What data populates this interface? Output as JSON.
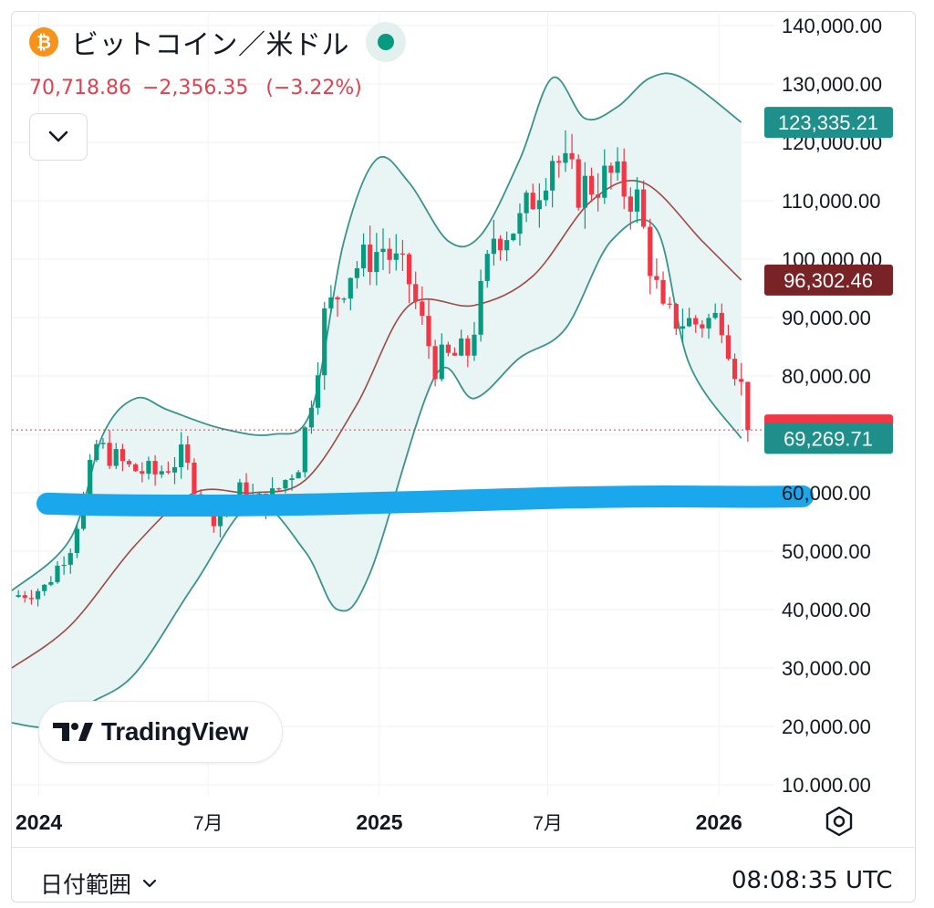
{
  "header": {
    "symbol_icon": "bitcoin-icon",
    "symbol_glyph": "₿",
    "title": "ビットコイン／米ドル",
    "status": "market-open-dot",
    "price": "70,718.86",
    "change": "−2,356.35",
    "change_pct": "(−3.22%)",
    "expand_icon": "chevron-down-icon"
  },
  "logo": {
    "text": "TradingView",
    "icon": "tradingview-logo-icon"
  },
  "footer": {
    "date_range_label": "日付範囲",
    "dropdown_icon": "chevron-down-icon",
    "time": "08:08:35 UTC",
    "settings_icon": "settings-hexagon-icon"
  },
  "colors": {
    "up": "#089981",
    "down": "#f23645",
    "band": "#3a938c",
    "band_fill": "#e9f4f4",
    "basis": "#a04a45",
    "highlight": "#1aa7ec",
    "axis_text": "#131722"
  },
  "chart_data": {
    "type": "candlestick",
    "interval": "weekly",
    "y_scale": "log",
    "ylim": [
      9000,
      140000
    ],
    "y_ticks": [
      140000,
      130000,
      120000,
      110000,
      100000,
      90000,
      80000,
      70000,
      60000,
      50000,
      40000,
      30000,
      20000,
      10000
    ],
    "y_tick_labels": [
      "140,000.00",
      "130,000.00",
      "120,000.00",
      "110,000.00",
      "100,000.00",
      "90,000.00",
      "80,000.00",
      "70,000.00",
      "60,000.00",
      "50,000.00",
      "40,000.00",
      "30,000.00",
      "20,000.00",
      "10.000.00"
    ],
    "x_range": [
      "2023-12-03",
      "2026-02-08"
    ],
    "x_ticks": [
      {
        "date": "2024-01-01",
        "label": "2024",
        "bold": true
      },
      {
        "date": "2024-07-01",
        "label": "7月",
        "bold": false
      },
      {
        "date": "2025-01-01",
        "label": "2025",
        "bold": true
      },
      {
        "date": "2025-07-01",
        "label": "7月",
        "bold": false
      },
      {
        "date": "2026-01-01",
        "label": "2026",
        "bold": true
      }
    ],
    "price_labels": [
      {
        "value": 123335.21,
        "text": "123,335.21",
        "color": "#1f8f8c"
      },
      {
        "value": 96302.46,
        "text": "96,302.46",
        "color": "#7a2326"
      },
      {
        "value": 70718.86,
        "text": "70,718.86",
        "color": "#f23645"
      },
      {
        "value": 69269.71,
        "text": "69,269.71",
        "color": "#1f8f8c"
      }
    ],
    "last_price": 70718.86,
    "highlight_level": 58000,
    "key_closes": [
      {
        "date": "2023-12-03",
        "close": 42000
      },
      {
        "date": "2024-01-07",
        "close": 43500
      },
      {
        "date": "2024-02-04",
        "close": 51000
      },
      {
        "date": "2024-03-03",
        "close": 68000
      },
      {
        "date": "2024-04-07",
        "close": 64000
      },
      {
        "date": "2024-05-05",
        "close": 63000
      },
      {
        "date": "2024-06-02",
        "close": 66000
      },
      {
        "date": "2024-07-07",
        "close": 56000
      },
      {
        "date": "2024-08-04",
        "close": 60000
      },
      {
        "date": "2024-09-01",
        "close": 58000
      },
      {
        "date": "2024-10-06",
        "close": 65000
      },
      {
        "date": "2024-11-03",
        "close": 90000
      },
      {
        "date": "2024-12-01",
        "close": 98000
      },
      {
        "date": "2025-01-05",
        "close": 102000
      },
      {
        "date": "2025-02-02",
        "close": 96000
      },
      {
        "date": "2025-03-02",
        "close": 82000
      },
      {
        "date": "2025-04-06",
        "close": 84000
      },
      {
        "date": "2025-05-04",
        "close": 104000
      },
      {
        "date": "2025-06-01",
        "close": 106000
      },
      {
        "date": "2025-07-06",
        "close": 118000
      },
      {
        "date": "2025-08-03",
        "close": 112000
      },
      {
        "date": "2025-09-07",
        "close": 114000
      },
      {
        "date": "2025-10-05",
        "close": 110000
      },
      {
        "date": "2025-11-02",
        "close": 90000
      },
      {
        "date": "2025-12-07",
        "close": 89000
      },
      {
        "date": "2026-01-04",
        "close": 90000
      },
      {
        "date": "2026-01-25",
        "close": 78000
      },
      {
        "date": "2026-02-01",
        "close": 70718.86
      }
    ],
    "bollinger_upper": [
      {
        "date": "2023-12-03",
        "value": 43000
      },
      {
        "date": "2024-02-04",
        "value": 52000
      },
      {
        "date": "2024-03-10",
        "value": 70000
      },
      {
        "date": "2024-04-14",
        "value": 76000
      },
      {
        "date": "2024-05-19",
        "value": 74000
      },
      {
        "date": "2024-07-14",
        "value": 71000
      },
      {
        "date": "2024-09-08",
        "value": 70000
      },
      {
        "date": "2024-10-20",
        "value": 74000
      },
      {
        "date": "2024-11-24",
        "value": 103000
      },
      {
        "date": "2024-12-29",
        "value": 117000
      },
      {
        "date": "2025-02-02",
        "value": 113000
      },
      {
        "date": "2025-03-16",
        "value": 103000
      },
      {
        "date": "2025-04-20",
        "value": 104000
      },
      {
        "date": "2025-06-01",
        "value": 117000
      },
      {
        "date": "2025-07-06",
        "value": 131000
      },
      {
        "date": "2025-08-10",
        "value": 124000
      },
      {
        "date": "2025-09-14",
        "value": 126000
      },
      {
        "date": "2025-10-19",
        "value": 131000
      },
      {
        "date": "2025-11-23",
        "value": 131000
      },
      {
        "date": "2026-01-25",
        "value": 123335.21
      }
    ],
    "bollinger_basis": [
      {
        "date": "2023-12-03",
        "value": 30000
      },
      {
        "date": "2024-02-04",
        "value": 37000
      },
      {
        "date": "2024-04-14",
        "value": 51000
      },
      {
        "date": "2024-06-16",
        "value": 60000
      },
      {
        "date": "2024-08-18",
        "value": 60000
      },
      {
        "date": "2024-10-13",
        "value": 62000
      },
      {
        "date": "2024-12-08",
        "value": 75000
      },
      {
        "date": "2025-02-02",
        "value": 92000
      },
      {
        "date": "2025-04-13",
        "value": 92000
      },
      {
        "date": "2025-06-15",
        "value": 97000
      },
      {
        "date": "2025-08-17",
        "value": 110000
      },
      {
        "date": "2025-10-12",
        "value": 113000
      },
      {
        "date": "2025-12-14",
        "value": 103000
      },
      {
        "date": "2026-01-25",
        "value": 96302.46
      }
    ],
    "bollinger_lower": [
      {
        "date": "2023-12-03",
        "value": 20500
      },
      {
        "date": "2024-01-14",
        "value": 20000
      },
      {
        "date": "2024-02-25",
        "value": 23500
      },
      {
        "date": "2024-04-14",
        "value": 29000
      },
      {
        "date": "2024-06-16",
        "value": 44000
      },
      {
        "date": "2024-08-18",
        "value": 58000
      },
      {
        "date": "2024-10-13",
        "value": 50000
      },
      {
        "date": "2024-11-17",
        "value": 40000
      },
      {
        "date": "2024-12-22",
        "value": 46000
      },
      {
        "date": "2025-03-02",
        "value": 80000
      },
      {
        "date": "2025-04-13",
        "value": 76000
      },
      {
        "date": "2025-06-01",
        "value": 83000
      },
      {
        "date": "2025-07-20",
        "value": 88000
      },
      {
        "date": "2025-09-07",
        "value": 103000
      },
      {
        "date": "2025-10-26",
        "value": 105000
      },
      {
        "date": "2025-11-30",
        "value": 82000
      },
      {
        "date": "2026-01-25",
        "value": 69269.71
      }
    ]
  }
}
